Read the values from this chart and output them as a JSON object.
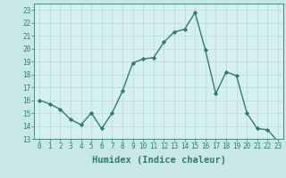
{
  "x": [
    0,
    1,
    2,
    3,
    4,
    5,
    6,
    7,
    8,
    9,
    10,
    11,
    12,
    13,
    14,
    15,
    16,
    17,
    18,
    19,
    20,
    21,
    22,
    23
  ],
  "y": [
    16,
    15.7,
    15.3,
    14.5,
    14.1,
    15.0,
    13.8,
    15.0,
    16.7,
    18.9,
    19.2,
    19.3,
    20.5,
    21.3,
    21.5,
    22.8,
    19.9,
    16.5,
    18.2,
    17.9,
    15.0,
    13.8,
    13.7,
    12.8
  ],
  "line_color": "#2d7d6e",
  "marker": "D",
  "marker_size": 2.2,
  "bg_color": "#c8e8e5",
  "plot_bg_color": "#d6f0ef",
  "grid_color": "#b8dbd8",
  "xlabel": "Humidex (Indice chaleur)",
  "ylim": [
    13,
    23.5
  ],
  "xlim": [
    -0.5,
    23.5
  ],
  "yticks": [
    13,
    14,
    15,
    16,
    17,
    18,
    19,
    20,
    21,
    22,
    23
  ],
  "xticks": [
    0,
    1,
    2,
    3,
    4,
    5,
    6,
    7,
    8,
    9,
    10,
    11,
    12,
    13,
    14,
    15,
    16,
    17,
    18,
    19,
    20,
    21,
    22,
    23
  ],
  "tick_fontsize": 5.5,
  "xlabel_fontsize": 7.5,
  "line_width": 1.0
}
